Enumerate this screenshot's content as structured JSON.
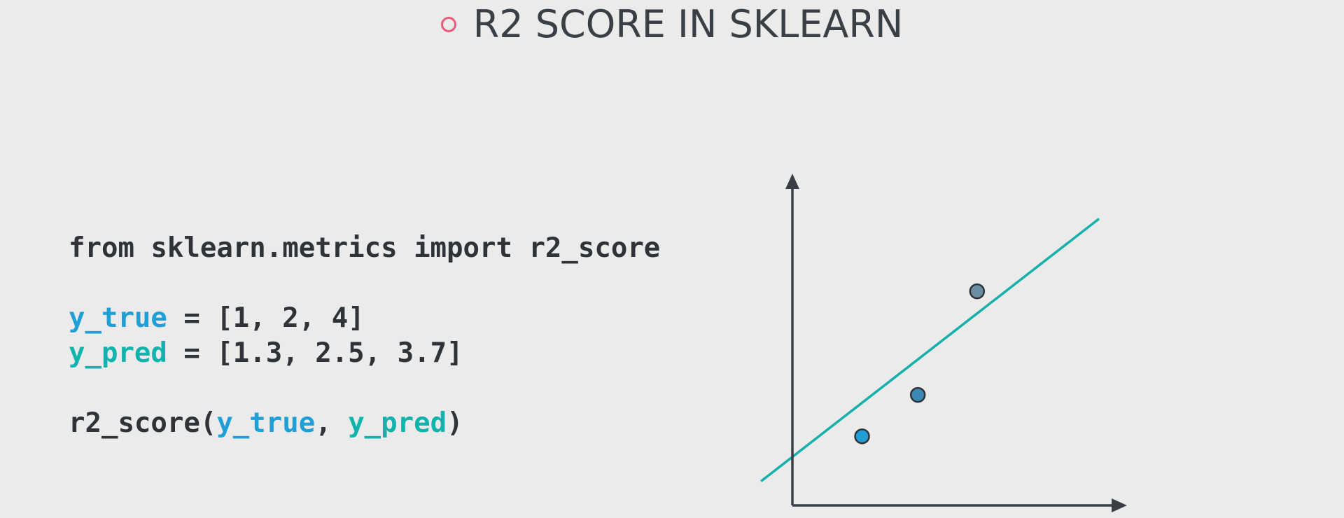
{
  "slide": {
    "title": "R2 SCORE IN SKLEARN",
    "bullet_color": "#ea5a7b"
  },
  "code": {
    "import_line": "from sklearn.metrics import r2_score",
    "y_true_name": "y_true",
    "y_true_rest": " = [1, 2, 4]",
    "y_pred_name": "y_pred",
    "y_pred_rest": " = [1.3, 2.5, 3.7]",
    "call_func": "r2_score(",
    "call_arg1": "y_true",
    "call_sep": ", ",
    "call_arg2": "y_pred",
    "call_close": ")",
    "colors": {
      "y_true": "#1f9fd6",
      "y_pred": "#11b3ad",
      "text": "#2f3338"
    }
  },
  "chart_data": {
    "type": "scatter",
    "title": "",
    "xlabel": "",
    "ylabel": "",
    "grid": false,
    "points": [
      {
        "x": 1.0,
        "y": 1.0,
        "color": "#1f9fd6"
      },
      {
        "x": 1.8,
        "y": 1.6,
        "color": "#3c88b6"
      },
      {
        "x": 2.65,
        "y": 3.1,
        "color": "#6b8ea6"
      }
    ],
    "fit_line": {
      "x0": -0.45,
      "y0": 0.35,
      "x1": 4.4,
      "y1": 4.15,
      "color": "#16b0ab"
    },
    "xlim": [
      0,
      4.5
    ],
    "ylim": [
      0,
      4.5
    ],
    "axis_color": "#3a3f45"
  }
}
